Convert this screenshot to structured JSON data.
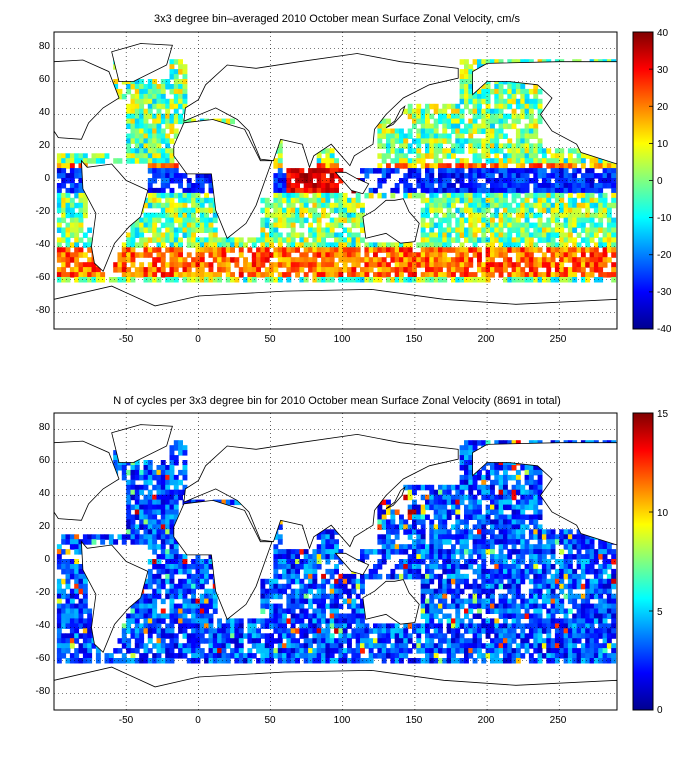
{
  "chart_data": [
    {
      "type": "heatmap",
      "title": "3x3 degree bin–averaged 2010 October mean Surface Zonal Velocity, cm/s",
      "xlabel": "",
      "ylabel": "",
      "xlim": [
        -100,
        290
      ],
      "ylim": [
        -90,
        90
      ],
      "bin_deg": 3,
      "x_ticks": [
        "-50",
        "0",
        "50",
        "100",
        "150",
        "200",
        "250"
      ],
      "y_ticks": [
        "80",
        "60",
        "40",
        "20",
        "0",
        "-20",
        "-40",
        "-60",
        "-80"
      ],
      "grid": true,
      "colorbar": {
        "range": [
          -40,
          40
        ],
        "ticks": [
          "40",
          "30",
          "20",
          "10",
          "0",
          "-10",
          "-20",
          "-30",
          "-40"
        ],
        "colormap": "jet"
      },
      "background": "#ffffff",
      "land_outline": "#000000"
    },
    {
      "type": "heatmap",
      "title": "N of cycles per 3x3 degree bin for 2010 October mean Surface Zonal Velocity (8691 in total)",
      "xlabel": "",
      "ylabel": "",
      "xlim": [
        -100,
        290
      ],
      "ylim": [
        -90,
        90
      ],
      "bin_deg": 3,
      "x_ticks": [
        "-50",
        "0",
        "50",
        "100",
        "150",
        "200",
        "250"
      ],
      "y_ticks": [
        "80",
        "60",
        "40",
        "20",
        "0",
        "-20",
        "-40",
        "-60",
        "-80"
      ],
      "grid": true,
      "colorbar": {
        "range": [
          0,
          15
        ],
        "ticks": [
          "15",
          "10",
          "5",
          "0"
        ],
        "colormap": "jet"
      },
      "background": "#ffffff",
      "land_outline": "#000000"
    }
  ]
}
